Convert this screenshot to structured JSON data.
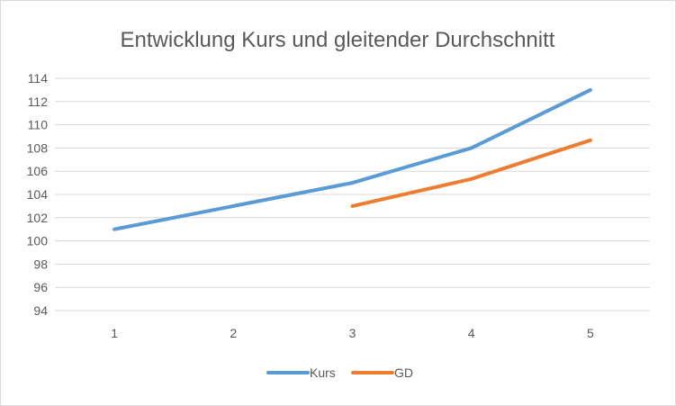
{
  "chart_data": {
    "type": "line",
    "title": "Entwicklung Kurs und gleitender Durchschnitt",
    "xlabel": "",
    "ylabel": "",
    "categories": [
      "1",
      "2",
      "3",
      "4",
      "5"
    ],
    "y_ticks": [
      "94",
      "96",
      "98",
      "100",
      "102",
      "104",
      "106",
      "108",
      "110",
      "112",
      "114"
    ],
    "ylim": [
      94,
      114
    ],
    "grid": true,
    "legend_position": "bottom",
    "series": [
      {
        "name": "Kurs",
        "color": "#5b9bd5",
        "values": [
          101,
          103,
          105,
          108,
          113
        ]
      },
      {
        "name": "GD",
        "color": "#ed7d31",
        "values": [
          null,
          null,
          103,
          105.33,
          108.67
        ]
      }
    ]
  }
}
